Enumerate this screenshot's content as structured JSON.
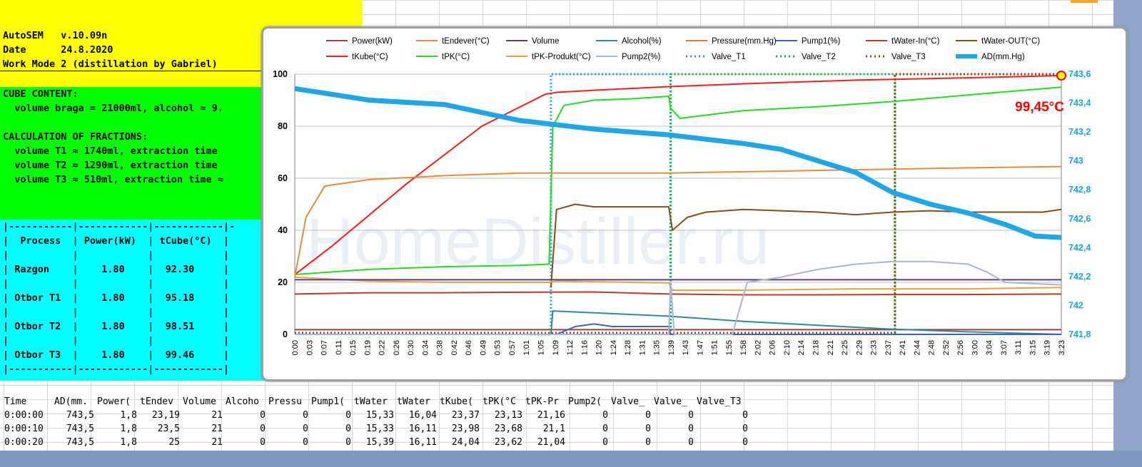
{
  "header": {
    "lines": [
      "AutoSEM   v.10.09n",
      "Date      24.8.2020",
      "Work Mode 2 (distillation by Gabriel)"
    ]
  },
  "cube": {
    "lines": [
      "CUBE CONTENT:",
      "  volume braga = 21000ml, alcohol ≈ 9.",
      "",
      "CALCULATION OF FRACTIONS:",
      "  volume T1 ≈ 1740ml, extraction time",
      "  volume T2 ≈ 1290ml, extraction time",
      "  volume T3 ≈ 510ml, extraction time ≈"
    ]
  },
  "process": {
    "lines": [
      "|-----------|------------|------------|-",
      "|  Process  | Power(kW)  | tCube(°C)  |",
      "|           |            |            |",
      "| Razgon    |    1.80    |  92.30     |",
      "|           |            |            |",
      "| Otbor T1  |    1.80    |  95.18     |",
      "|           |            |            |",
      "| Otbor T2  |    1.80    |  98.51     |",
      "|           |            |            |",
      "| Otbor T3  |    1.80    |  99.46     |",
      "|-----------|------------|------------|"
    ]
  },
  "table": {
    "headers": [
      "Time",
      "AD(mm.",
      "Power(",
      "tEndev",
      "Volume",
      "Alcoho",
      "Pressu",
      "Pump1(",
      "tWater",
      "tWater",
      "tKube(",
      "tPK(°C",
      "tPK-Pr",
      "Pump2(",
      "Valve_",
      "Valve_",
      "Valve_T3"
    ],
    "rows": [
      [
        "0:00:00",
        "743,5",
        "1,8",
        "23,19",
        "21",
        "0",
        "0",
        "0",
        "15,33",
        "16,04",
        "23,37",
        "23,13",
        "21,16",
        "0",
        "0",
        "0",
        "0"
      ],
      [
        "0:00:10",
        "743,5",
        "1,8",
        "23,5",
        "21",
        "0",
        "0",
        "0",
        "15,33",
        "16,11",
        "23,98",
        "23,68",
        "21,1",
        "0",
        "0",
        "0",
        "0"
      ],
      [
        "0:00:20",
        "743,5",
        "1,8",
        "25",
        "21",
        "0",
        "0",
        "0",
        "15,39",
        "16,11",
        "24,04",
        "23,62",
        "21,04",
        "0",
        "0",
        "0",
        "0"
      ]
    ]
  },
  "watermark": "HomeDistiller.ru",
  "chart_data": {
    "type": "line",
    "legend_position": "top",
    "grid": true,
    "annotation": "99,45°C",
    "ylim": [
      0,
      100
    ],
    "y2lim": [
      741.8,
      743.6
    ],
    "yticks": [
      "0",
      "20",
      "40",
      "60",
      "80",
      "100"
    ],
    "y2ticks": [
      "741,8",
      "742",
      "742,2",
      "742,4",
      "742,6",
      "742,8",
      "743",
      "743,2",
      "743,4",
      "743,6"
    ],
    "xticks": [
      "0:00",
      "0:03",
      "0:07",
      "0:11",
      "0:15",
      "0:19",
      "0:22",
      "0:26",
      "0:30",
      "0:34",
      "0:38",
      "0:42",
      "0:46",
      "0:49",
      "0:53",
      "0:57",
      "1:01",
      "1:05",
      "1:09",
      "1:12",
      "1:16",
      "1:20",
      "1:24",
      "1:28",
      "1:31",
      "1:35",
      "1:39",
      "1:43",
      "1:47",
      "1:51",
      "1:55",
      "1:58",
      "2:02",
      "2:06",
      "2:10",
      "2:14",
      "2:18",
      "2:21",
      "2:25",
      "2:29",
      "2:33",
      "2:37",
      "2:41",
      "2:44",
      "2:48",
      "2:52",
      "2:56",
      "3:00",
      "3:04",
      "3:07",
      "3:11",
      "3:15",
      "3:19",
      "3:23"
    ],
    "x_minutes_max": 205,
    "legend": [
      {
        "name": "Power(kW)",
        "color": "#a93a3a",
        "style": "solid"
      },
      {
        "name": "tEndever(°C)",
        "color": "#e98b3a",
        "style": "solid"
      },
      {
        "name": "Volume",
        "color": "#5b3c8c",
        "style": "solid"
      },
      {
        "name": "Alcohol(%)",
        "color": "#2f8a9e",
        "style": "solid"
      },
      {
        "name": "Pressure(mm.Hg)",
        "color": "#e07b28",
        "style": "solid"
      },
      {
        "name": "Pump1(%)",
        "color": "#3e66b8",
        "style": "solid"
      },
      {
        "name": "tWater-In(°C)",
        "color": "#c0392b",
        "style": "solid"
      },
      {
        "name": "tWater-OUT(°C)",
        "color": "#8b4a16",
        "style": "solid"
      },
      {
        "name": "tKube(°C)",
        "color": "#ff1a1a",
        "style": "solid"
      },
      {
        "name": "tPK(°C)",
        "color": "#22dd22",
        "style": "solid"
      },
      {
        "name": "tPK-Produkt(°C)",
        "color": "#f0a040",
        "style": "solid"
      },
      {
        "name": "Pump2(%)",
        "color": "#a9b4d6",
        "style": "solid"
      },
      {
        "name": "Valve_T1",
        "color": "#1ea7e8",
        "style": "dotted"
      },
      {
        "name": "Valve_T2",
        "color": "#18b04a",
        "style": "dotted"
      },
      {
        "name": "Valve_T3",
        "color": "#8b4a16",
        "style": "dotted"
      },
      {
        "name": "AD(mm.Hg)",
        "color": "#1ea7e8",
        "style": "thick"
      }
    ],
    "series": [
      {
        "name": "tKube(°C)",
        "axis": "left",
        "x": [
          0,
          10,
          30,
          50,
          67,
          70,
          80,
          100,
          120,
          150,
          180,
          205
        ],
        "y": [
          23,
          34,
          58,
          80,
          92.3,
          93,
          93.8,
          95.2,
          96.3,
          97.7,
          98.6,
          99.45
        ]
      },
      {
        "name": "tPK(°C)",
        "axis": "left",
        "x": [
          0,
          20,
          40,
          60,
          68,
          69,
          72,
          80,
          90,
          100,
          100.5,
          103,
          120,
          140,
          160,
          180,
          205
        ],
        "y": [
          23,
          25,
          26,
          26.5,
          27,
          80,
          88,
          90,
          90.5,
          91.5,
          87,
          83,
          86,
          87.5,
          89.5,
          92,
          95
        ]
      },
      {
        "name": "tEndever(°C)",
        "axis": "left",
        "x": [
          0,
          3,
          8,
          20,
          40,
          60,
          80,
          100,
          120,
          140,
          160,
          180,
          205
        ],
        "y": [
          22,
          45,
          57,
          59.5,
          61,
          62,
          62,
          62,
          62.5,
          63,
          63.5,
          64,
          64.5
        ]
      },
      {
        "name": "tWater-OUT(°C)",
        "axis": "left",
        "x": [
          68.5,
          70,
          75,
          80,
          90,
          100,
          101,
          105,
          110,
          120,
          130,
          140,
          150,
          160,
          170,
          180,
          190,
          200,
          205
        ],
        "y": [
          18,
          48,
          50,
          49,
          49,
          49,
          40,
          45,
          47,
          48,
          47.5,
          47,
          46,
          47,
          47.5,
          47,
          47,
          47,
          48
        ]
      },
      {
        "name": "tPK-Produkt(°C)",
        "axis": "left",
        "x": [
          0,
          20,
          40,
          60,
          68,
          70,
          90,
          100,
          101,
          120,
          150,
          180,
          205
        ],
        "y": [
          22,
          20.5,
          20,
          20,
          20,
          20.5,
          20,
          19.8,
          17,
          17,
          17.5,
          17.5,
          18
        ]
      },
      {
        "name": "tWater-In(°C)",
        "axis": "left",
        "x": [
          0,
          20,
          40,
          60,
          80,
          100,
          120,
          140,
          160,
          180,
          205
        ],
        "y": [
          15.5,
          16,
          16,
          16.2,
          16.3,
          15.5,
          15.2,
          15.2,
          15.3,
          15.3,
          15.5
        ]
      },
      {
        "name": "Volume",
        "axis": "left",
        "x": [
          0,
          205
        ],
        "y": [
          21,
          21
        ]
      },
      {
        "name": "Power(kW)",
        "axis": "left",
        "x": [
          0,
          205
        ],
        "y": [
          1.8,
          1.8
        ]
      },
      {
        "name": "Alcohol(%)",
        "axis": "left",
        "x": [
          0,
          68.5,
          69,
          100,
          120,
          140,
          160,
          180,
          205
        ],
        "y": [
          0,
          0,
          9,
          7,
          5,
          3.5,
          2,
          1,
          0
        ]
      },
      {
        "name": "Pump1(%)",
        "axis": "left",
        "x": [
          0,
          70,
          75,
          80,
          85,
          100,
          100.5,
          205
        ],
        "y": [
          0,
          0,
          3,
          4,
          3,
          3,
          0,
          0
        ]
      },
      {
        "name": "Pump2(%)",
        "axis": "left",
        "x": [
          0,
          100,
          100.5,
          101.5,
          110,
          117,
          121,
          130,
          140,
          150,
          160,
          170,
          180,
          185,
          190,
          205
        ],
        "y": [
          0,
          0,
          20,
          0,
          0,
          0,
          20,
          22,
          25,
          27,
          28,
          28,
          27,
          24,
          20,
          19
        ]
      },
      {
        "name": "AD(mm.Hg)",
        "axis": "right",
        "x": [
          0,
          20,
          40,
          60,
          80,
          100,
          120,
          130,
          140,
          150,
          160,
          170,
          180,
          190,
          198,
          205
        ],
        "y": [
          743.5,
          743.42,
          743.39,
          743.28,
          743.22,
          743.18,
          743.12,
          743.08,
          743.0,
          742.92,
          742.78,
          742.7,
          742.64,
          742.56,
          742.48,
          742.47
        ]
      }
    ],
    "markers": [
      {
        "name": "Valve_T1",
        "x_start": 63,
        "x_on": 68.5,
        "x_off": 100.5
      },
      {
        "name": "Valve_T2",
        "x_on": 100.5,
        "x_off": 160.5
      },
      {
        "name": "Valve_T3",
        "x_on": 160.5,
        "x_off": 205
      }
    ]
  }
}
